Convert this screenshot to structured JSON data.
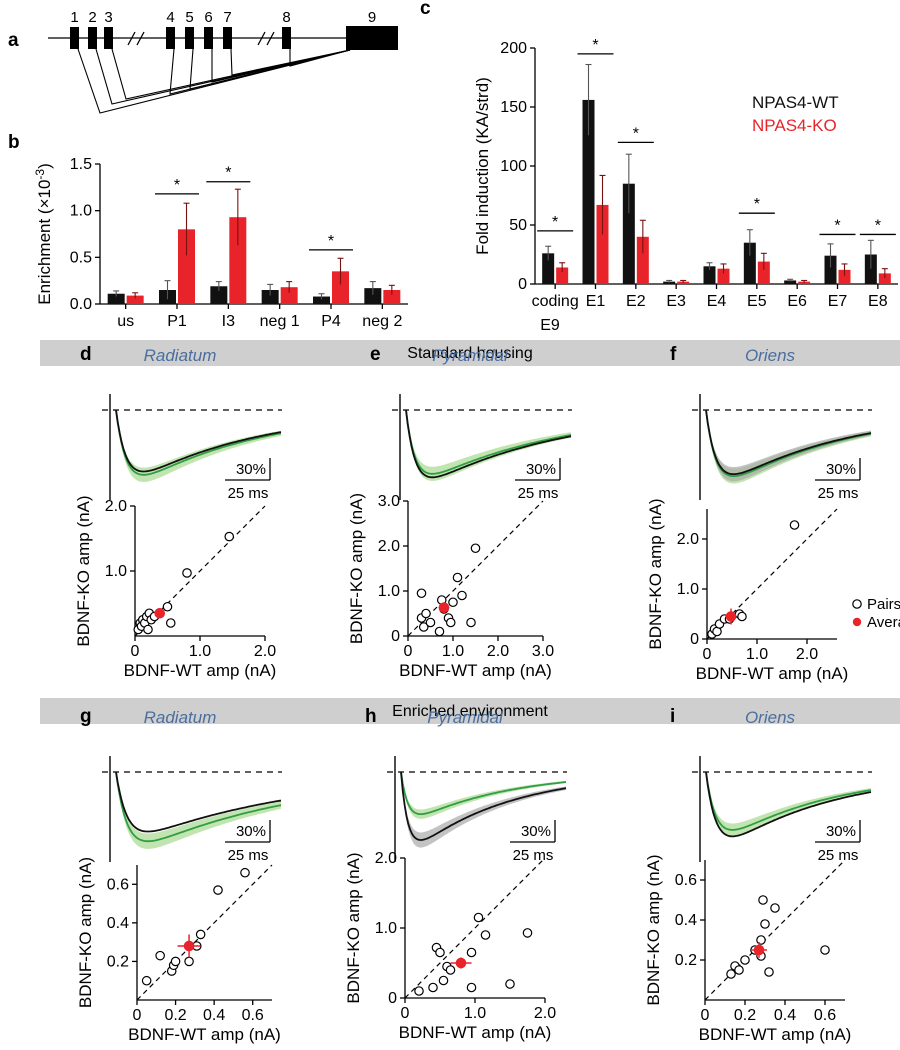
{
  "colors": {
    "wt": "#111111",
    "ko": "#e8242a",
    "green": "#2f9e44",
    "greenFill": "#a8d88e",
    "grayFill": "#a9a9a9",
    "banner": "#cfcfcf",
    "region": "#4a6e9e"
  },
  "banners": {
    "standard": "Standard housing",
    "enriched": "Enriched environment"
  },
  "chart_data": [
    {
      "panel": "a",
      "type": "diagram",
      "label": "a",
      "exons": [
        "1",
        "2",
        "3",
        "4",
        "5",
        "6",
        "7",
        "8",
        "9"
      ]
    },
    {
      "panel": "b",
      "type": "bar",
      "label": "b",
      "ylabel": "Enrichment (×10",
      "ylabel_sup": "-3",
      "ylabel_end": ")",
      "ylim": [
        0,
        1.5
      ],
      "yticks": [
        "0.0",
        "0.5",
        "1.0",
        "1.5"
      ],
      "categories": [
        "us",
        "P1",
        "I3",
        "neg 1",
        "P4",
        "neg 2"
      ],
      "series": [
        {
          "name": "NPAS4-WT",
          "values": [
            0.11,
            0.15,
            0.19,
            0.15,
            0.08,
            0.17
          ],
          "errors": [
            0.03,
            0.1,
            0.05,
            0.06,
            0.03,
            0.07
          ]
        },
        {
          "name": "NPAS4-KO",
          "values": [
            0.09,
            0.8,
            0.93,
            0.18,
            0.35,
            0.15
          ],
          "errors": [
            0.03,
            0.28,
            0.3,
            0.06,
            0.14,
            0.05
          ]
        }
      ],
      "significant": [
        "*",
        "*",
        "*"
      ]
    },
    {
      "panel": "c",
      "type": "bar",
      "label": "c",
      "ylabel": "Fold induction (KA/strd)",
      "ylim": [
        0,
        200
      ],
      "yticks": [
        "0",
        "50",
        "100",
        "150",
        "200"
      ],
      "categories": [
        "coding",
        "E1",
        "E2",
        "E3",
        "E4",
        "E5",
        "E6",
        "E7",
        "E8"
      ],
      "cat_sub": "E9",
      "series": [
        {
          "name": "NPAS4-WT",
          "values": [
            26,
            156,
            85,
            2,
            15,
            35,
            3,
            24,
            25
          ],
          "errors": [
            6,
            30,
            25,
            1,
            3,
            11,
            1,
            10,
            12
          ]
        },
        {
          "name": "NPAS4-KO",
          "values": [
            14,
            67,
            40,
            2,
            13,
            19,
            2,
            12,
            9
          ],
          "errors": [
            4,
            25,
            14,
            1,
            4,
            7,
            1,
            5,
            4
          ]
        }
      ],
      "significant": [
        "*",
        "*",
        "*",
        "*",
        "*",
        "*"
      ]
    },
    {
      "panel": "d",
      "type": "scatter",
      "label": "d",
      "region": "Radiatum",
      "scale_y": "30%",
      "scale_x": "25 ms",
      "xlabel": "BDNF-WT amp (nA)",
      "ylabel": "BDNF-KO amp (nA)",
      "xlim": [
        0,
        2.0
      ],
      "ylim": [
        0,
        2.0
      ],
      "xticks": [
        "0",
        "1.0",
        "2.0"
      ],
      "yticks": [
        "1.0",
        "2.0"
      ],
      "points": [
        [
          0.05,
          0.1
        ],
        [
          0.08,
          0.2
        ],
        [
          0.1,
          0.15
        ],
        [
          0.12,
          0.25
        ],
        [
          0.15,
          0.2
        ],
        [
          0.18,
          0.3
        ],
        [
          0.2,
          0.1
        ],
        [
          0.22,
          0.35
        ],
        [
          0.25,
          0.25
        ],
        [
          0.3,
          0.3
        ],
        [
          0.5,
          0.45
        ],
        [
          0.55,
          0.2
        ],
        [
          0.8,
          0.97
        ],
        [
          1.45,
          1.53
        ]
      ],
      "avg": [
        0.38,
        0.35
      ],
      "avg_err": [
        0.06,
        0.07
      ],
      "wt_depth": 0.93,
      "ko_depth": 0.98,
      "shade": "ko",
      "pulse": 1.5,
      "decay": 9
    },
    {
      "panel": "e",
      "type": "scatter",
      "label": "e",
      "region": "Pyramidal",
      "scale_y": "30%",
      "scale_x": "25 ms",
      "xlabel": "BDNF-WT amp (nA)",
      "ylabel": "BDNF-KO amp (nA)",
      "xlim": [
        0,
        3.0
      ],
      "ylim": [
        0,
        3.0
      ],
      "xticks": [
        "0",
        "1.0",
        "2.0",
        "3.0"
      ],
      "yticks": [
        "0",
        "1.0",
        "2.0",
        "3.0"
      ],
      "points": [
        [
          0.3,
          0.4
        ],
        [
          0.35,
          0.2
        ],
        [
          0.4,
          0.5
        ],
        [
          0.5,
          0.3
        ],
        [
          0.7,
          0.1
        ],
        [
          0.75,
          0.8
        ],
        [
          0.8,
          0.6
        ],
        [
          0.9,
          0.4
        ],
        [
          0.95,
          0.3
        ],
        [
          1.0,
          0.75
        ],
        [
          1.1,
          1.3
        ],
        [
          1.2,
          0.9
        ],
        [
          1.4,
          0.3
        ],
        [
          1.5,
          1.95
        ],
        [
          0.3,
          0.95
        ]
      ],
      "avg": [
        0.8,
        0.63
      ],
      "avg_err": [
        0.12,
        0.12
      ],
      "wt_depth": 0.97,
      "ko_depth": 0.92,
      "shade": "ko",
      "pulse": 1.7,
      "decay": 10
    },
    {
      "panel": "f",
      "type": "scatter",
      "label": "f",
      "region": "Oriens",
      "scale_y": "30%",
      "scale_x": "25 ms",
      "xlabel": "BDNF-WT amp (nA)",
      "ylabel": "BDNF-KO amp (nA)",
      "xlim": [
        0,
        2.6
      ],
      "ylim": [
        0,
        2.6
      ],
      "xticks": [
        "0",
        "1.0",
        "2.0"
      ],
      "yticks": [
        "0",
        "1.0",
        "2.0"
      ],
      "points": [
        [
          0.1,
          0.1
        ],
        [
          0.15,
          0.2
        ],
        [
          0.2,
          0.15
        ],
        [
          0.25,
          0.3
        ],
        [
          0.35,
          0.4
        ],
        [
          0.45,
          0.4
        ],
        [
          0.65,
          0.5
        ],
        [
          0.7,
          0.45
        ],
        [
          1.75,
          2.28
        ]
      ],
      "avg": [
        0.48,
        0.45
      ],
      "avg_err": [
        0.1,
        0.16
      ],
      "legend": [
        "Pairs",
        "Average"
      ],
      "wt_depth": 0.97,
      "ko_depth": 1.0,
      "shade": "both",
      "pulse": 1.5,
      "decay": 9
    },
    {
      "panel": "g",
      "type": "scatter",
      "label": "g",
      "region": "Radiatum",
      "scale_y": "30%",
      "scale_x": "25 ms",
      "xlabel": "BDNF-WT amp (nA)",
      "ylabel": "BDNF-KO amp (nA)",
      "xlim": [
        0,
        0.7
      ],
      "ylim": [
        0,
        0.7
      ],
      "xticks": [
        "0",
        "0.2",
        "0.4",
        "0.6"
      ],
      "yticks": [
        "0.2",
        "0.4",
        "0.6"
      ],
      "points": [
        [
          0.05,
          0.1
        ],
        [
          0.12,
          0.23
        ],
        [
          0.18,
          0.15
        ],
        [
          0.19,
          0.18
        ],
        [
          0.2,
          0.2
        ],
        [
          0.27,
          0.2
        ],
        [
          0.31,
          0.28
        ],
        [
          0.33,
          0.34
        ],
        [
          0.42,
          0.57
        ],
        [
          0.56,
          0.66
        ]
      ],
      "avg": [
        0.27,
        0.28
      ],
      "avg_err": [
        0.06,
        0.06
      ],
      "wt_depth": 0.86,
      "ko_depth": 1.0,
      "shade": "ko",
      "pulse": 1.4,
      "decay": 12
    },
    {
      "panel": "h",
      "type": "scatter",
      "label": "h",
      "region": "Pyramidal",
      "scale_y": "30%",
      "scale_x": "25 ms",
      "xlabel": "BDNF-WT amp (nA)",
      "ylabel": "BDNF-KO amp (nA)",
      "xlim": [
        0,
        2.0
      ],
      "ylim": [
        0,
        2.0
      ],
      "xticks": [
        "0",
        "1.0",
        "2.0"
      ],
      "yticks": [
        "0",
        "1.0",
        "2.0"
      ],
      "points": [
        [
          0.2,
          0.1
        ],
        [
          0.4,
          0.15
        ],
        [
          0.45,
          0.72
        ],
        [
          0.5,
          0.65
        ],
        [
          0.55,
          0.25
        ],
        [
          0.6,
          0.45
        ],
        [
          0.65,
          0.4
        ],
        [
          0.8,
          0.5
        ],
        [
          0.95,
          0.15
        ],
        [
          1.05,
          1.15
        ],
        [
          1.15,
          0.9
        ],
        [
          1.5,
          0.2
        ],
        [
          1.75,
          0.93
        ],
        [
          0.95,
          0.65
        ]
      ],
      "avg": [
        0.8,
        0.5
      ],
      "avg_err": [
        0.15,
        0.08
      ],
      "wt_depth": 1.0,
      "ko_depth": 0.62,
      "shade": "both",
      "pulse": 2.2,
      "decay": 7
    },
    {
      "panel": "i",
      "type": "scatter",
      "label": "i",
      "region": "Oriens",
      "scale_y": "30%",
      "scale_x": "25 ms",
      "xlabel": "BDNF-WT amp (nA)",
      "ylabel": "BDNF-KO amp (nA)",
      "xlim": [
        0,
        0.7
      ],
      "ylim": [
        0,
        0.7
      ],
      "xticks": [
        "0",
        "0.2",
        "0.4",
        "0.6"
      ],
      "yticks": [
        "0.2",
        "0.4",
        "0.6"
      ],
      "points": [
        [
          0.13,
          0.13
        ],
        [
          0.15,
          0.17
        ],
        [
          0.17,
          0.15
        ],
        [
          0.2,
          0.2
        ],
        [
          0.25,
          0.25
        ],
        [
          0.28,
          0.22
        ],
        [
          0.29,
          0.5
        ],
        [
          0.3,
          0.38
        ],
        [
          0.32,
          0.14
        ],
        [
          0.35,
          0.46
        ],
        [
          0.6,
          0.25
        ],
        [
          0.28,
          0.3
        ]
      ],
      "avg": [
        0.27,
        0.25
      ],
      "avg_err": [
        0.04,
        0.04
      ],
      "wt_depth": 1.0,
      "ko_depth": 0.9,
      "shade": "ko",
      "pulse": 1.5,
      "decay": 8
    }
  ]
}
